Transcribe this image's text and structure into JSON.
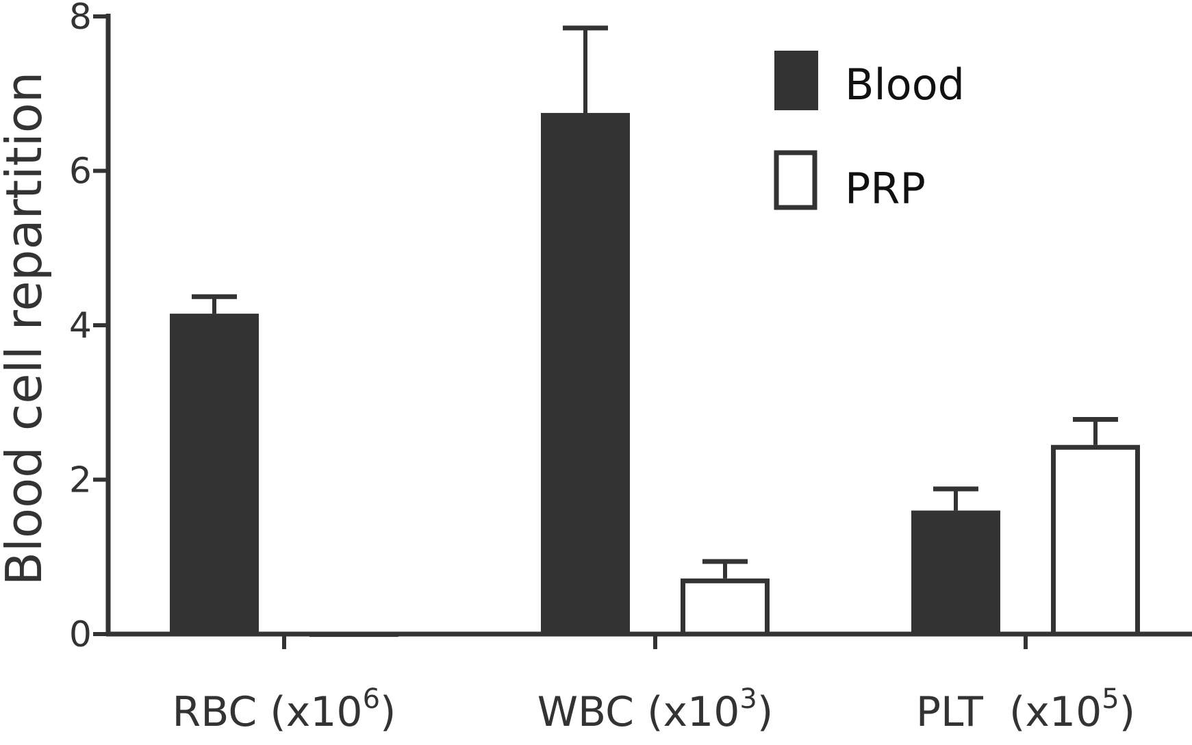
{
  "chart_data": {
    "type": "bar",
    "ylabel": "Blood cell repartition",
    "xlabel": "",
    "ylim": [
      0,
      8
    ],
    "yticks": [
      0,
      2,
      4,
      6,
      8
    ],
    "categories": [
      {
        "base": "RBC (x10",
        "exp": "6",
        "close": ")"
      },
      {
        "base": "WBC (x10",
        "exp": "3",
        "close": ")"
      },
      {
        "base": "PLT  (x10",
        "exp": "5",
        "close": ")"
      }
    ],
    "series": [
      {
        "name": "Blood",
        "style": "filled",
        "values": [
          4.15,
          6.75,
          1.6
        ],
        "errors": [
          0.22,
          1.1,
          0.28
        ]
      },
      {
        "name": "PRP",
        "style": "hollow",
        "values": [
          0.03,
          0.72,
          2.45
        ],
        "errors": [
          0.0,
          0.22,
          0.33
        ]
      }
    ],
    "legend": "top-right",
    "grid": false,
    "colors": {
      "filled": "#333333",
      "axis": "#333333",
      "background": "#ffffff"
    }
  }
}
